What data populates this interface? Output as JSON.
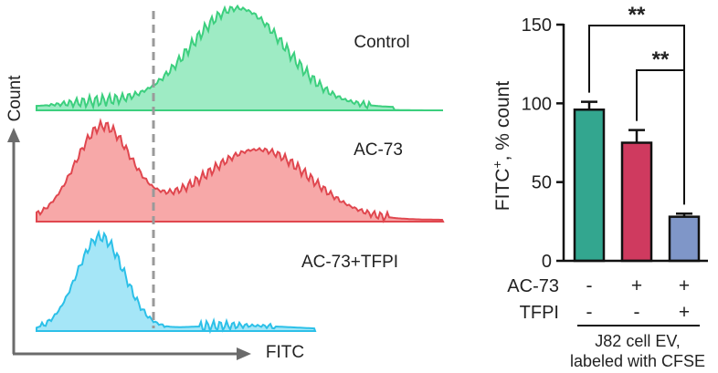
{
  "colors": {
    "control_fill": "#9eebc4",
    "control_line": "#3ccf7e",
    "ac73_fill": "#f7a8a8",
    "ac73_line": "#e0474f",
    "tfpi_fill": "#a5e6f7",
    "tfpi_line": "#2cc0e8",
    "bar_control": "#33a68f",
    "bar_ac73": "#cf3a5f",
    "bar_tfpi": "#7f96c8",
    "axis": "#6b6b6b",
    "gate": "#9a9a9a"
  },
  "chart_data": [
    {
      "type": "area",
      "xlabel": "FITC",
      "ylabel": "Count",
      "gate_line": "dashed vertical gate",
      "series": [
        {
          "name": "Control",
          "color_key": "control"
        },
        {
          "name": "AC-73",
          "color_key": "ac73"
        },
        {
          "name": "AC-73+TFPI",
          "color_key": "tfpi"
        }
      ]
    },
    {
      "type": "bar",
      "ylabel_main": "FITC",
      "ylabel_sup": "+",
      "ylabel_rest": ", % count",
      "ylim": [
        0,
        150
      ],
      "yticks": [
        "0",
        "50",
        "100",
        "150"
      ],
      "values": [
        96,
        75,
        28
      ],
      "errors": [
        5,
        8,
        2
      ],
      "row_labels": [
        {
          "name": "AC-73",
          "marks": [
            "-",
            "+",
            "+"
          ]
        },
        {
          "name": "TFPI",
          "marks": [
            "-",
            "-",
            "+"
          ]
        }
      ],
      "group_label_line1": "J82 cell EV,",
      "group_label_line2": "labeled with CFSE",
      "significance": [
        {
          "between": [
            0,
            2
          ],
          "text": "**"
        },
        {
          "between": [
            1,
            2
          ],
          "text": "**"
        }
      ]
    }
  ]
}
